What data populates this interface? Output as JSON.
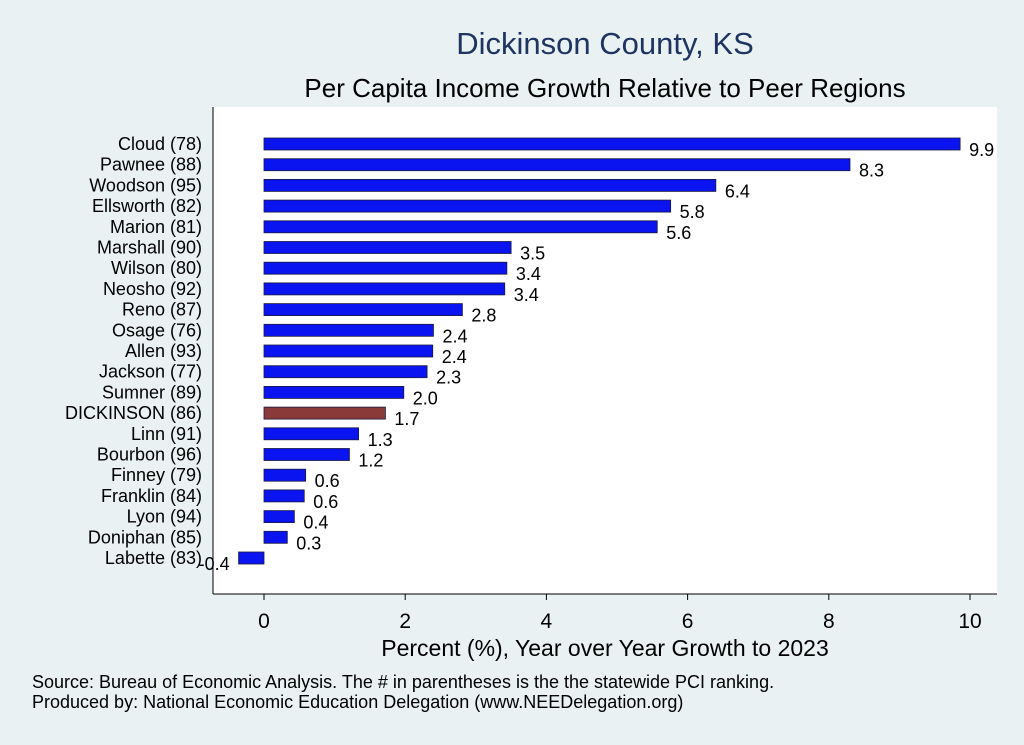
{
  "chart_data": {
    "type": "bar",
    "orientation": "horizontal",
    "title": "Dickinson County, KS",
    "subtitle": "Per Capita Income Growth Relative to Peer Regions",
    "xlabel": "Percent (%), Year over Year Growth to 2023",
    "ylabel": "",
    "xlim": [
      -0.7,
      10.3
    ],
    "xticks": [
      0,
      2,
      4,
      6,
      8,
      10
    ],
    "grid": false,
    "categories": [
      "Cloud (78)",
      "Pawnee (88)",
      "Woodson (95)",
      "Ellsworth (82)",
      "Marion (81)",
      "Marshall (90)",
      "Wilson (80)",
      "Neosho (92)",
      "Reno (87)",
      "Osage (76)",
      "Allen (93)",
      "Jackson (77)",
      "Sumner (89)",
      "DICKINSON (86)",
      "Linn (91)",
      "Bourbon (96)",
      "Finney (79)",
      "Franklin (84)",
      "Lyon (94)",
      "Doniphan (85)",
      "Labette (83)"
    ],
    "values": [
      9.86,
      8.3,
      6.4,
      5.76,
      5.57,
      3.5,
      3.44,
      3.41,
      2.81,
      2.4,
      2.39,
      2.31,
      1.98,
      1.72,
      1.34,
      1.21,
      0.59,
      0.57,
      0.43,
      0.33,
      -0.36
    ],
    "value_labels": [
      "9.9",
      "8.3",
      "6.4",
      "5.8",
      "5.6",
      "3.5",
      "3.4",
      "3.4",
      "2.8",
      "2.4",
      "2.4",
      "2.3",
      "2.0",
      "1.7",
      "1.3",
      "1.2",
      "0.6",
      "0.6",
      "0.4",
      "0.3",
      "-0.4"
    ],
    "highlight": "DICKINSON (86)",
    "colors": {
      "bar": "#0a14f0",
      "highlight": "#8b3a3a",
      "bar_edge": "#1a1a40",
      "plot_bg": "#ffffff",
      "page_bg": "#e9f1f3",
      "title": "#1e3461"
    }
  },
  "footer": {
    "source": "Source: Bureau of Economic Analysis. The # in parentheses is the the statewide PCI ranking.",
    "producer": "Produced by: National Economic Education Delegation (www.NEEDelegation.org)"
  }
}
